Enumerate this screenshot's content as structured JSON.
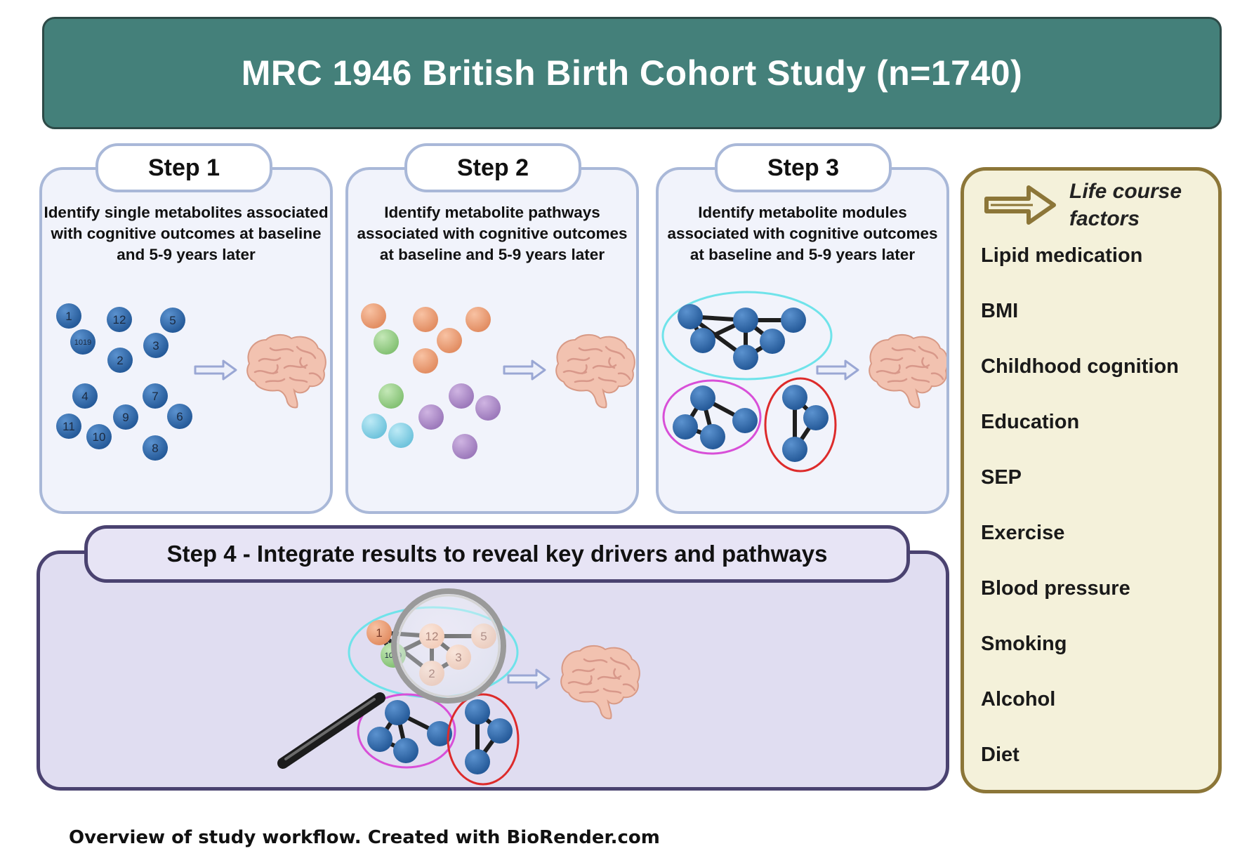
{
  "header": {
    "title": "MRC 1946 British Birth Cohort Study (n=1740)"
  },
  "steps": [
    {
      "label": "Step 1",
      "description": [
        "Identify single metabolites associated",
        "with cognitive outcomes at baseline",
        "and 5-9 years later"
      ]
    },
    {
      "label": "Step 2",
      "description": [
        "Identify metabolite pathways",
        "associated with cognitive outcomes",
        "at baseline and 5-9 years later"
      ]
    },
    {
      "label": "Step 3",
      "description": [
        "Identify metabolite modules",
        "associated with cognitive outcomes",
        "at baseline and 5-9 years later"
      ]
    }
  ],
  "step1_nodes": [
    "1",
    "12",
    "5",
    "1019",
    "3",
    "2",
    "4",
    "7",
    "9",
    "6",
    "11",
    "10",
    "8"
  ],
  "step4": {
    "label": "Step 4 - Integrate results to reveal key drivers and pathways",
    "nodes": [
      "1",
      "12",
      "5",
      "1019",
      "3",
      "2"
    ]
  },
  "life_course": {
    "title_line1": "Life course",
    "title_line2": "factors",
    "factors": [
      "Lipid medication",
      "BMI",
      "Childhood cognition",
      "Education",
      "SEP",
      "Exercise",
      "Blood pressure",
      "Smoking",
      "Alcohol",
      "Diet"
    ]
  },
  "caption": "Overview of study workflow. Created with BioRender.com",
  "colors": {
    "header_bg": "#44807a",
    "panel_border": "#a9b8d8",
    "metabolite_blue": "#2e66a8",
    "pathway_orange": "#eea27c",
    "pathway_green": "#9bcf8e",
    "pathway_purple": "#b08fcb",
    "pathway_cyan": "#8fd3e8",
    "module_cyan": "#6fe3ea",
    "module_magenta": "#d84fd8",
    "module_red": "#dd2b2b",
    "step4_bg": "#e0ddf1",
    "life_bg": "#f4f1da",
    "life_border": "#8c7638"
  }
}
